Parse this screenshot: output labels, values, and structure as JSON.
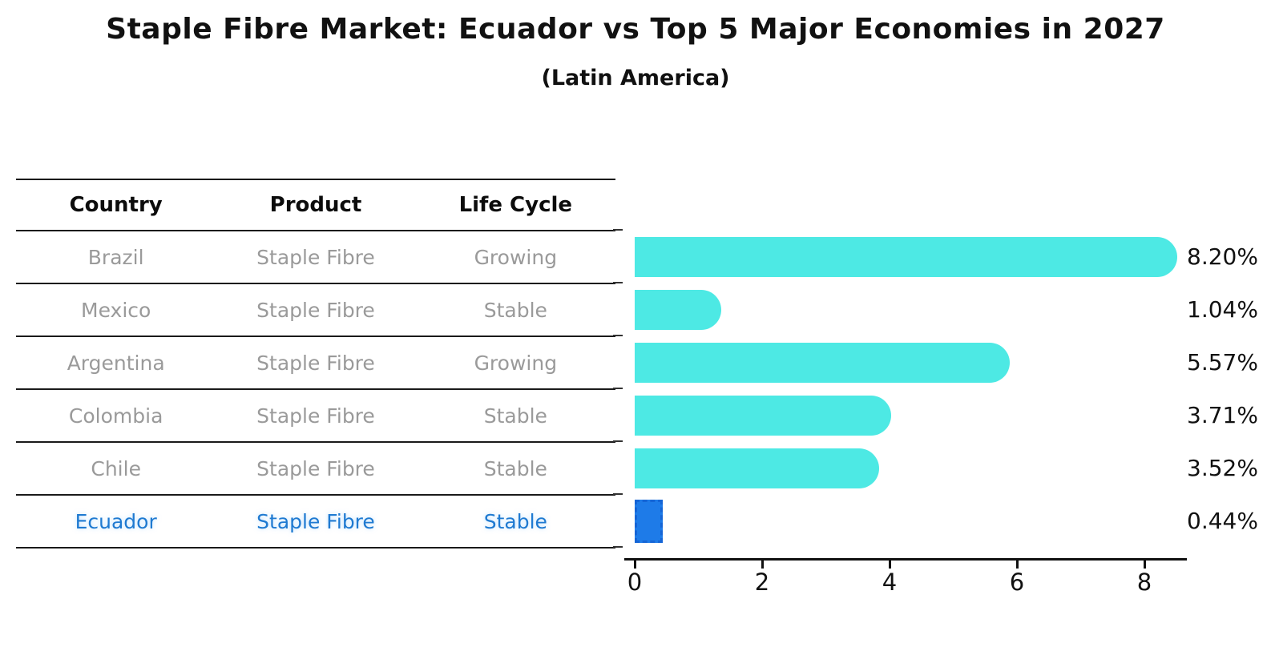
{
  "title": "Staple Fibre Market: Ecuador vs Top 5 Major Economies in 2027",
  "subtitle": "(Latin America)",
  "table": {
    "headers": [
      "Country",
      "Product",
      "Life Cycle"
    ],
    "rows": [
      {
        "country": "Brazil",
        "product": "Staple Fibre",
        "life_cycle": "Growing"
      },
      {
        "country": "Mexico",
        "product": "Staple Fibre",
        "life_cycle": "Stable"
      },
      {
        "country": "Argentina",
        "product": "Staple Fibre",
        "life_cycle": "Growing"
      },
      {
        "country": "Colombia",
        "product": "Staple Fibre",
        "life_cycle": "Stable"
      },
      {
        "country": "Chile",
        "product": "Staple Fibre",
        "life_cycle": "Stable"
      },
      {
        "country": "Ecuador",
        "product": "Staple Fibre",
        "life_cycle": "Stable"
      }
    ],
    "highlight_row": "Ecuador"
  },
  "chart_data": {
    "type": "bar",
    "orientation": "horizontal",
    "title": "Staple Fibre Market: Ecuador vs Top 5 Major Economies in 2027",
    "subtitle": "(Latin America)",
    "categories": [
      "Brazil",
      "Mexico",
      "Argentina",
      "Colombia",
      "Chile",
      "Ecuador"
    ],
    "values": [
      8.2,
      1.04,
      5.57,
      3.71,
      3.52,
      0.44
    ],
    "value_labels": [
      "8.20%",
      "1.04%",
      "5.57%",
      "3.71%",
      "3.52%",
      "0.44%"
    ],
    "xticks": [
      0,
      2,
      4,
      6,
      8
    ],
    "xlim": [
      0,
      8.67
    ],
    "grid": false,
    "legend": false,
    "highlight_index": 5,
    "bar_color": "#4DE9E4",
    "highlight_color": "#1E7BE8",
    "highlight_border_color": "#1565D6"
  },
  "colors": {
    "title_text": "#111111",
    "table_text": "#9A9A9A",
    "highlight_text": "#1F7AD1",
    "rule_line": "#1A1A1A",
    "axis": "#111111"
  }
}
